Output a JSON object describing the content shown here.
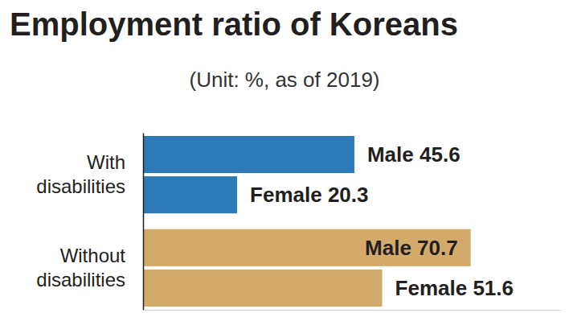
{
  "chart_data": {
    "type": "bar",
    "orientation": "horizontal",
    "title": "Employment ratio of Koreans",
    "subtitle": "(Unit: %, as of 2019)",
    "categories": [
      "With disabilities",
      "Without disabilities"
    ],
    "series": [
      {
        "name": "Male",
        "values": [
          45.6,
          70.7
        ],
        "colors": [
          "#2e7ab6",
          "#d4aa6b"
        ]
      },
      {
        "name": "Female",
        "values": [
          20.3,
          51.6
        ],
        "colors": [
          "#2e7ab6",
          "#d4aa6b"
        ]
      }
    ],
    "xlim": [
      0,
      90
    ],
    "tick_labels": "y",
    "data_labels": true,
    "grid": false
  }
}
